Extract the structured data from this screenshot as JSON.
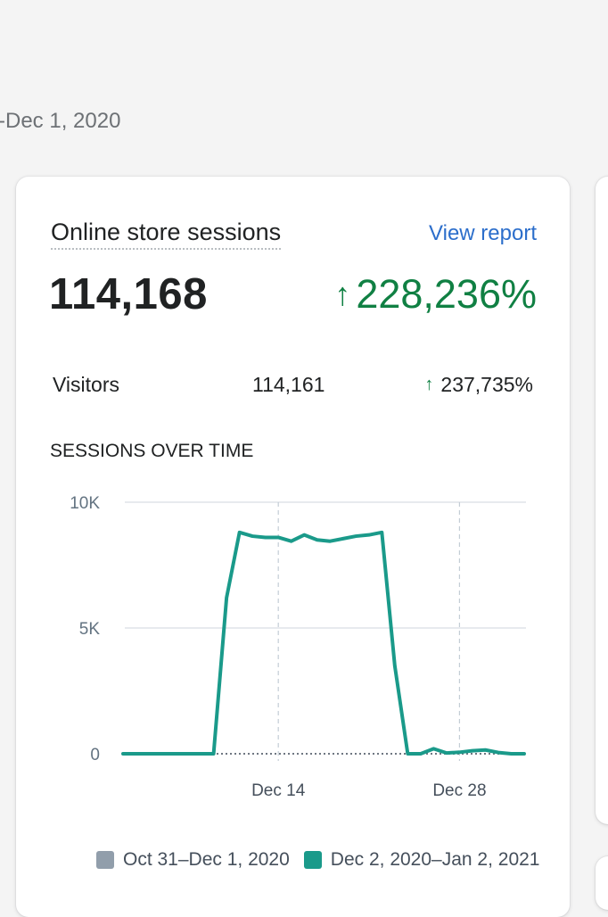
{
  "header": {
    "date_range_fragment": "-Dec 1, 2020"
  },
  "card": {
    "title": "Online store sessions",
    "view_report_label": "View report",
    "total": "114,168",
    "total_change": "228,236%",
    "trend_icon": "arrow-up-icon",
    "metrics": [
      {
        "label": "Visitors",
        "value": "114,161",
        "change": "237,735%"
      }
    ],
    "chart_heading": "SESSIONS OVER TIME"
  },
  "colors": {
    "current": "#1a9a8a",
    "previous": "#919eab",
    "positive": "#108043",
    "link": "#2c6ecb"
  },
  "chart_data": {
    "type": "line",
    "title": "SESSIONS OVER TIME",
    "xlabel": "",
    "ylabel": "",
    "x": [
      "Dec 2",
      "Dec 3",
      "Dec 4",
      "Dec 5",
      "Dec 6",
      "Dec 7",
      "Dec 8",
      "Dec 9",
      "Dec 10",
      "Dec 11",
      "Dec 12",
      "Dec 13",
      "Dec 14",
      "Dec 15",
      "Dec 16",
      "Dec 17",
      "Dec 18",
      "Dec 19",
      "Dec 20",
      "Dec 21",
      "Dec 22",
      "Dec 23",
      "Dec 24",
      "Dec 25",
      "Dec 26",
      "Dec 27",
      "Dec 28",
      "Dec 29",
      "Dec 30",
      "Dec 31",
      "Jan 1",
      "Jan 2"
    ],
    "x_ticks": [
      "Dec 14",
      "Dec 28"
    ],
    "y_ticks": [
      {
        "value": 0,
        "label": "0"
      },
      {
        "value": 5000,
        "label": "5K"
      },
      {
        "value": 10000,
        "label": "10K"
      }
    ],
    "ylim": [
      0,
      10000
    ],
    "grid": true,
    "legend_position": "bottom",
    "series": [
      {
        "name": "Dec 2, 2020–Jan 2, 2021",
        "color": "#1a9a8a",
        "values": [
          0,
          0,
          0,
          0,
          0,
          0,
          0,
          0,
          6200,
          8800,
          8650,
          8600,
          8600,
          8450,
          8700,
          8500,
          8450,
          8550,
          8650,
          8700,
          8800,
          3500,
          0,
          0,
          200,
          30,
          60,
          120,
          150,
          50,
          0,
          0
        ]
      },
      {
        "name": "Oct 31–Dec 1, 2020",
        "color": "#919eab",
        "values": [
          0,
          0,
          0,
          0,
          0,
          0,
          0,
          0,
          0,
          0,
          0,
          0,
          0,
          0,
          0,
          0,
          0,
          0,
          0,
          0,
          0,
          0,
          0,
          0,
          0,
          0,
          0,
          0,
          0,
          0,
          0,
          0
        ]
      }
    ]
  }
}
